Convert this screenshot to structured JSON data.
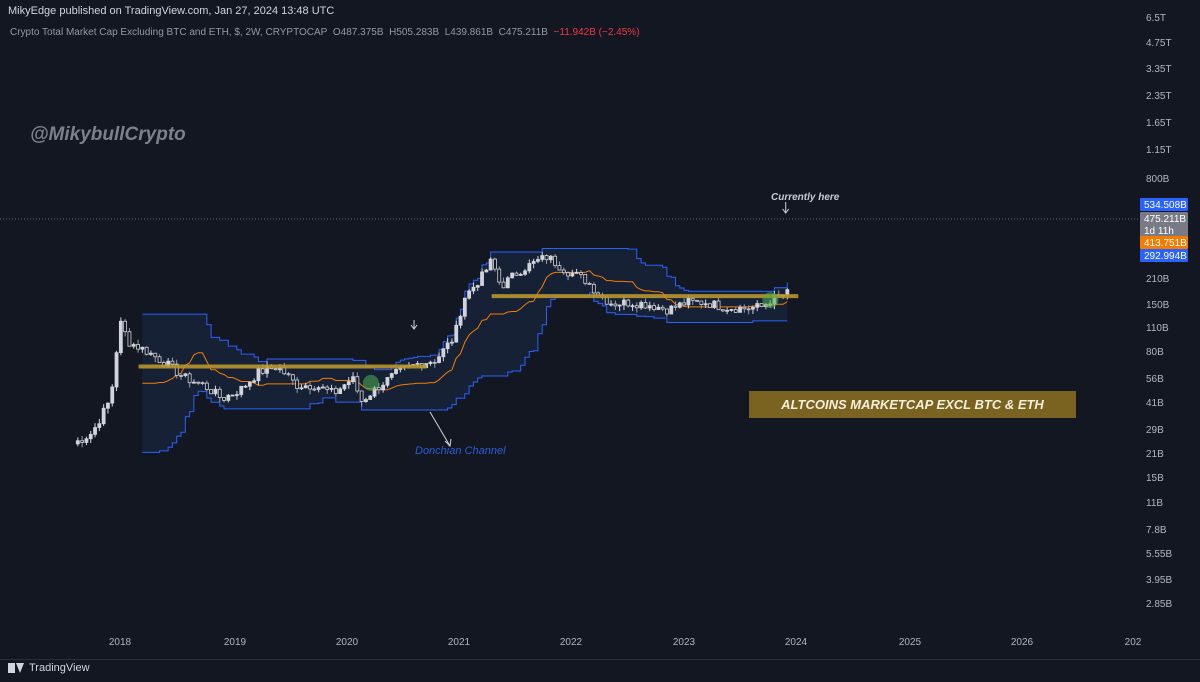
{
  "header": {
    "publisher": "MikyEdge published on TradingView.com, Jan 27, 2024 13:48 UTC",
    "symbol_title": "Crypto Total Market Cap Excluding BTC and ETH, $, 2W, CRYPTOCAP",
    "ohlc": {
      "o_label": "O",
      "o_value": "487.375B",
      "h_label": "H",
      "h_value": "505.283B",
      "l_label": "L",
      "l_value": "439.861B",
      "c_label": "C",
      "c_value": "475.211B",
      "change": "−11.942B (−2.45%)"
    }
  },
  "watermark": "@MikybullCrypto",
  "annotations": {
    "currently_here": "Currently here",
    "donchian": "Donchian Channel",
    "banner": "ALTCOINS MARKETCAP EXCL BTC & ETH"
  },
  "footer": {
    "brand": "TradingView"
  },
  "colors": {
    "background": "#131722",
    "bull_candle": "#d1d4dc",
    "channel_band": "#2962ff",
    "channel_fill": "#1b2a45",
    "basis_line": "#f57c00",
    "support_line": "#b8962e",
    "label_blue": "#2962ff",
    "label_orange": "#f57c00",
    "label_grey": "#787b86",
    "green_marker": "#4caf50"
  },
  "chart_data": {
    "type": "candlestick",
    "title": "Crypto Total Market Cap Excluding BTC and ETH, $, 2W, CRYPTOCAP",
    "y_scale": "log",
    "y_unit": "USD",
    "y_ticks": [
      "6.5T",
      "4.75T",
      "3.35T",
      "2.35T",
      "1.65T",
      "1.15T",
      "800B",
      "534.508B",
      "475.211B",
      "1d 11h",
      "413.751B",
      "292.994B",
      "210B",
      "150B",
      "110B",
      "80B",
      "56B",
      "41B",
      "29B",
      "21B",
      "15B",
      "11B",
      "7.8B",
      "5.55B",
      "3.95B",
      "2.85B"
    ],
    "x_ticks": [
      "2018",
      "2019",
      "2020",
      "2021",
      "2022",
      "2023",
      "2024",
      "2025",
      "2026",
      "202"
    ],
    "price_labels": [
      {
        "text": "534.508B",
        "kind": "upper-band"
      },
      {
        "text": "475.211B",
        "kind": "last-price"
      },
      {
        "text": "1d 11h",
        "kind": "countdown"
      },
      {
        "text": "413.751B",
        "kind": "basis"
      },
      {
        "text": "292.994B",
        "kind": "lower-band"
      }
    ],
    "last_bar": {
      "open": "487.375B",
      "high": "505.283B",
      "low": "439.861B",
      "close": "475.211B",
      "change": "−11.942B (−2.45%)"
    },
    "indicator": "Donchian Channel",
    "series": [
      {
        "name": "Price (approx. 2W closes)",
        "points": [
          [
            "2017-08",
            14
          ],
          [
            "2017-10",
            18
          ],
          [
            "2017-12",
            40
          ],
          [
            "2018-01",
            240
          ],
          [
            "2018-02",
            150
          ],
          [
            "2018-04",
            120
          ],
          [
            "2018-06",
            90
          ],
          [
            "2018-08",
            65
          ],
          [
            "2018-10",
            55
          ],
          [
            "2018-12",
            40
          ],
          [
            "2019-02",
            50
          ],
          [
            "2019-04",
            75
          ],
          [
            "2019-06",
            85
          ],
          [
            "2019-08",
            55
          ],
          [
            "2019-10",
            55
          ],
          [
            "2019-12",
            45
          ],
          [
            "2020-02",
            65
          ],
          [
            "2020-03",
            38
          ],
          [
            "2020-05",
            55
          ],
          [
            "2020-07",
            75
          ],
          [
            "2020-09",
            90
          ],
          [
            "2020-11",
            100
          ],
          [
            "2021-01",
            170
          ],
          [
            "2021-02",
            420
          ],
          [
            "2021-04",
            700
          ],
          [
            "2021-05",
            1000
          ],
          [
            "2021-06",
            550
          ],
          [
            "2021-08",
            800
          ],
          [
            "2021-10",
            1000
          ],
          [
            "2021-11",
            1100
          ],
          [
            "2022-01",
            800
          ],
          [
            "2022-03",
            650
          ],
          [
            "2022-05",
            420
          ],
          [
            "2022-06",
            370
          ],
          [
            "2022-08",
            380
          ],
          [
            "2022-10",
            360
          ],
          [
            "2022-12",
            320
          ],
          [
            "2023-02",
            380
          ],
          [
            "2023-04",
            380
          ],
          [
            "2023-06",
            340
          ],
          [
            "2023-08",
            330
          ],
          [
            "2023-10",
            340
          ],
          [
            "2023-11",
            400
          ],
          [
            "2024-01",
            475
          ]
        ]
      }
    ],
    "support_lines": [
      {
        "from": "2018-03",
        "to": "2020-10",
        "value": 85
      },
      {
        "from": "2021-05",
        "to": "2024-02",
        "value": 440
      }
    ]
  }
}
